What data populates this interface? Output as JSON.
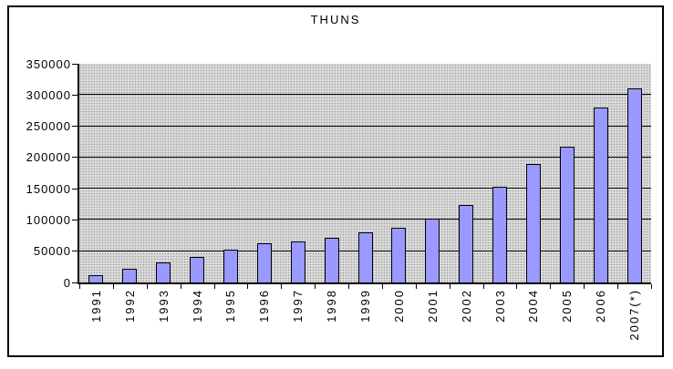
{
  "chart_data": {
    "type": "bar",
    "title": "THUNS",
    "categories": [
      "1991",
      "1992",
      "1993",
      "1994",
      "1995",
      "1996",
      "1997",
      "1998",
      "1999",
      "2000",
      "2001",
      "2002",
      "2003",
      "2004",
      "2005",
      "2006",
      "2007(*)"
    ],
    "values": [
      12000,
      22000,
      32000,
      41000,
      52000,
      63000,
      66000,
      72000,
      80000,
      88000,
      102000,
      124000,
      153000,
      190000,
      217000,
      280000,
      311000
    ],
    "xlabel": "",
    "ylabel": "",
    "ylim": [
      0,
      350000
    ],
    "ytick_interval": 50000,
    "ytick_labels": [
      "0",
      "50000",
      "100000",
      "150000",
      "200000",
      "250000",
      "300000",
      "350000"
    ],
    "grid": true,
    "legend_position": "none",
    "bar_color": "#9999ff",
    "bar_border_color": "#000000",
    "plot_background": "#d8d8d8",
    "plot_background_pattern": "gray-dot-dither",
    "gridline_color": "#000000",
    "frame_border_color": "#000000"
  }
}
